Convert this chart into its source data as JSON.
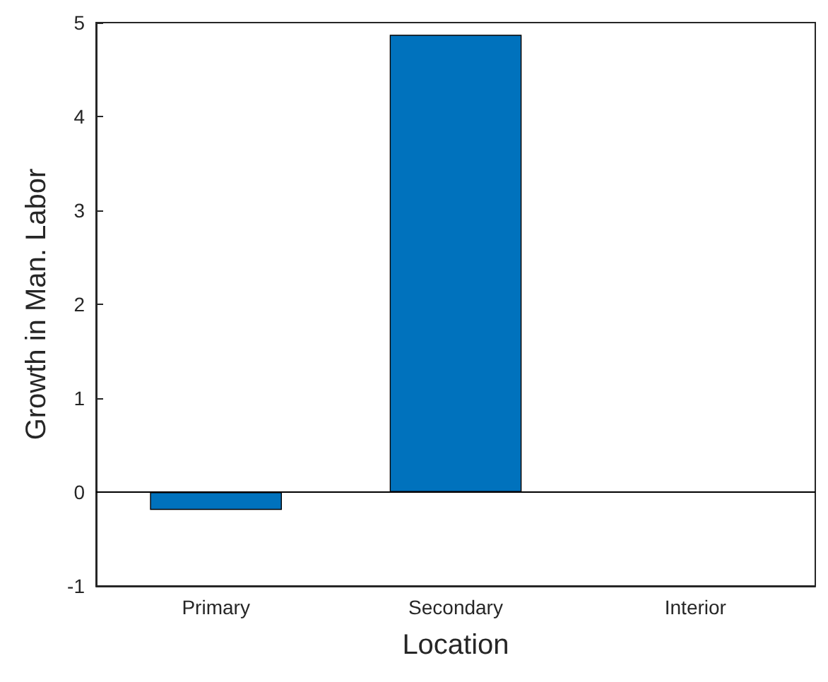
{
  "chart_data": {
    "type": "bar",
    "categories": [
      "Primary",
      "Secondary",
      "Interior"
    ],
    "values": [
      -0.19,
      4.87,
      null
    ],
    "color": "#0072bd",
    "xlabel": "Location",
    "ylabel": "Growth in Man. Labor",
    "ylim": [
      -1,
      5
    ],
    "yticks": [
      -1,
      0,
      1,
      2,
      3,
      4,
      5
    ],
    "grid": false,
    "ref_lines": [
      {
        "axis": "y",
        "value": 0,
        "color": "#000000"
      }
    ]
  }
}
